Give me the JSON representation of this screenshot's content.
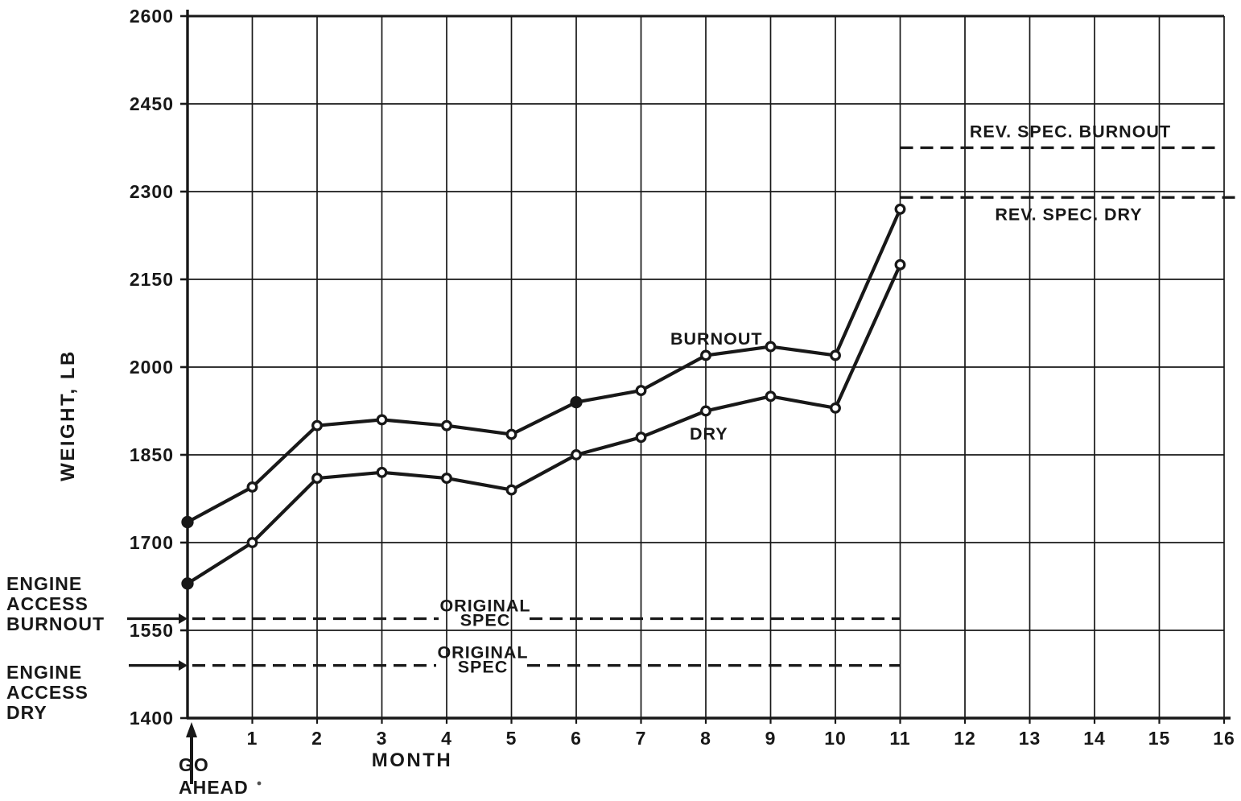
{
  "page": {
    "background": "#ffffff",
    "ink_color": "#181818"
  },
  "chart_data": {
    "type": "line",
    "title": "",
    "xlabel": "MONTH",
    "ylabel": "WEIGHT, LB",
    "xlim": [
      0,
      16
    ],
    "ylim": [
      1400,
      2600
    ],
    "x_ticks": [
      1,
      2,
      3,
      4,
      5,
      6,
      7,
      8,
      9,
      10,
      11,
      12,
      13,
      14,
      15,
      16
    ],
    "y_ticks": [
      1400,
      1550,
      1700,
      1850,
      2000,
      2150,
      2300,
      2450,
      2600
    ],
    "grid": {
      "horizontal": "every 150 lb",
      "vertical": "every month",
      "style": "solid"
    },
    "legend_position": "inline-labels-on-curves",
    "x": [
      0,
      1,
      2,
      3,
      4,
      5,
      6,
      7,
      8,
      9,
      10,
      11
    ],
    "series": [
      {
        "name": "BURNOUT",
        "marker": "circle",
        "filled_marker_indices": [
          0,
          6
        ],
        "values": [
          1735,
          1795,
          1900,
          1910,
          1900,
          1885,
          1940,
          1960,
          2020,
          2035,
          2020,
          2270
        ]
      },
      {
        "name": "DRY",
        "marker": "circle",
        "filled_marker_indices": [
          0
        ],
        "values": [
          1630,
          1700,
          1810,
          1820,
          1810,
          1790,
          1850,
          1880,
          1925,
          1950,
          1930,
          2175
        ]
      }
    ],
    "reference_lines": [
      {
        "label": "REV. SPEC. BURNOUT",
        "value": 2375,
        "x_start": 11,
        "x_end": 15.9,
        "style": "dashed",
        "label_position": "above"
      },
      {
        "label": "REV. SPEC. DRY",
        "value": 2290,
        "x_start": 11,
        "x_end": 16.25,
        "style": "dashed",
        "label_position": "below"
      },
      {
        "label": "ORIGINAL SPEC",
        "label_lines": [
          "ORIGINAL",
          "SPEC"
        ],
        "value": 1570,
        "x_start": 0,
        "x_end": 11,
        "style": "dashed",
        "label_position": "on-line"
      },
      {
        "label": "ORIGINAL SPEC",
        "label_lines": [
          "ORIGINAL",
          "SPEC"
        ],
        "value": 1490,
        "x_start": 0,
        "x_end": 11,
        "style": "dashed",
        "label_position": "on-line"
      }
    ],
    "annotations": [
      {
        "id": "engine-access-burnout",
        "lines": [
          "ENGINE",
          "ACCESS",
          "BURNOUT"
        ],
        "arrow": "right",
        "points_to_value": 1570
      },
      {
        "id": "engine-access-dry",
        "lines": [
          "ENGINE",
          "ACCESS",
          "DRY"
        ],
        "arrow": "right",
        "points_to_value": 1490
      },
      {
        "id": "go-ahead",
        "lines": [
          "GO",
          "AHEAD"
        ],
        "arrow": "up",
        "points_to_month": 0
      }
    ]
  }
}
